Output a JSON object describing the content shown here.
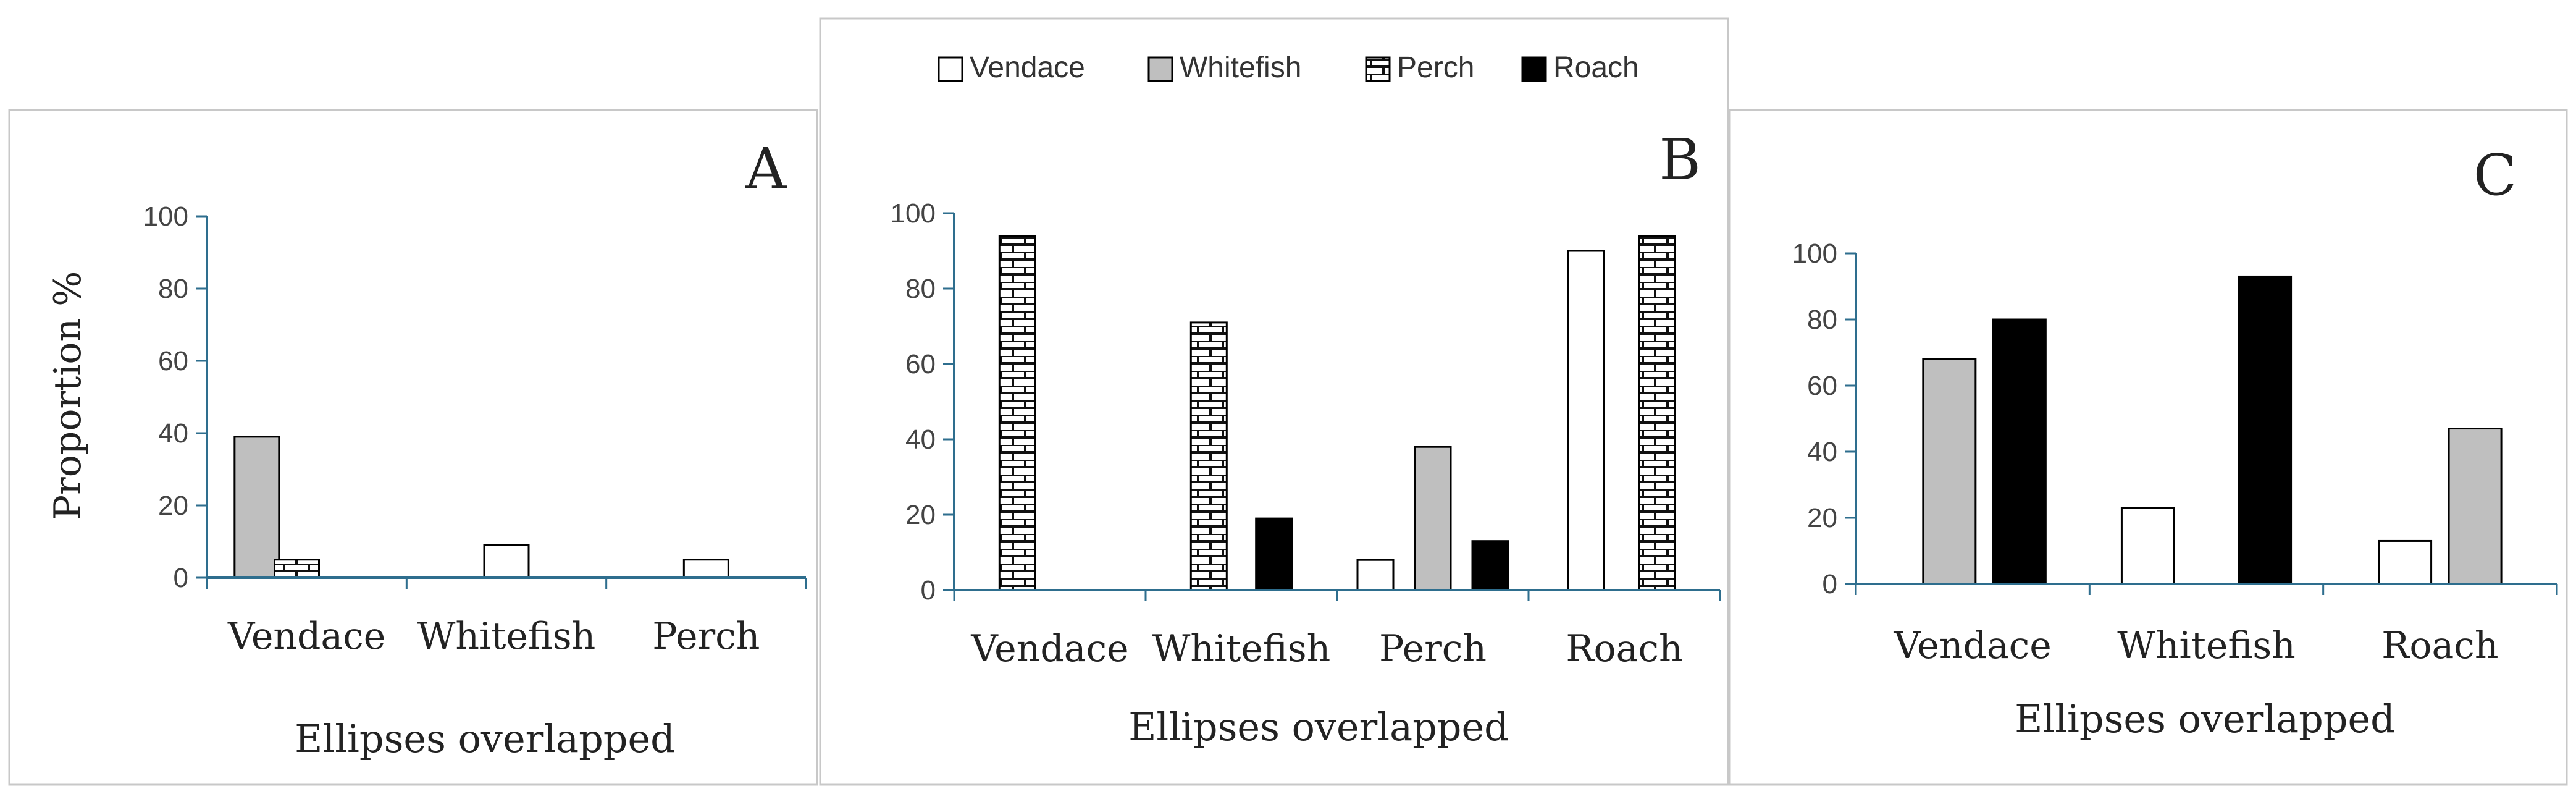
{
  "colors": {
    "vendace": "#ffffff",
    "whitefish": "#bfbfbf",
    "perch_fill": "#ffffff",
    "perch_brick": "#111111",
    "roach": "#000000",
    "axis": "#2e6e8e",
    "frame": "#c8c8c8"
  },
  "legend": {
    "items": [
      {
        "key": "vendace",
        "label": "Vendace"
      },
      {
        "key": "whitefish",
        "label": "Whitefish"
      },
      {
        "key": "perch",
        "label": "Perch"
      },
      {
        "key": "roach",
        "label": "Roach"
      }
    ]
  },
  "chart_data": [
    {
      "type": "bar",
      "panel": "A",
      "title": "A",
      "ylabel": "Proportion %",
      "xlabel": "Ellipses overlapped",
      "ylim": [
        0,
        100
      ],
      "yticks": [
        0,
        20,
        40,
        60,
        80,
        100
      ],
      "categories": [
        "Vendace",
        "Whitefish",
        "Perch"
      ],
      "series": [
        {
          "name": "Vendace",
          "key": "vendace",
          "values": [
            null,
            9,
            5
          ]
        },
        {
          "name": "Whitefish",
          "key": "whitefish",
          "values": [
            39,
            null,
            null
          ]
        },
        {
          "name": "Perch",
          "key": "perch",
          "values": [
            5,
            null,
            null
          ]
        }
      ]
    },
    {
      "type": "bar",
      "panel": "B",
      "title": "B",
      "ylabel": "",
      "xlabel": "Ellipses overlapped",
      "ylim": [
        0,
        100
      ],
      "yticks": [
        0,
        20,
        40,
        60,
        80,
        100
      ],
      "categories": [
        "Vendace",
        "Whitefish",
        "Perch",
        "Roach"
      ],
      "series": [
        {
          "name": "Vendace",
          "key": "vendace",
          "values": [
            null,
            null,
            8,
            90
          ]
        },
        {
          "name": "Whitefish",
          "key": "whitefish",
          "values": [
            null,
            null,
            38,
            null
          ]
        },
        {
          "name": "Perch",
          "key": "perch",
          "values": [
            94,
            71,
            null,
            94
          ]
        },
        {
          "name": "Roach",
          "key": "roach",
          "values": [
            null,
            19,
            13,
            null
          ]
        }
      ]
    },
    {
      "type": "bar",
      "panel": "C",
      "title": "C",
      "ylabel": "",
      "xlabel": "Ellipses overlapped",
      "ylim": [
        0,
        100
      ],
      "yticks": [
        0,
        20,
        40,
        60,
        80,
        100
      ],
      "categories": [
        "Vendace",
        "Whitefish",
        "Roach"
      ],
      "series": [
        {
          "name": "Vendace",
          "key": "vendace",
          "values": [
            null,
            23,
            13
          ]
        },
        {
          "name": "Whitefish",
          "key": "whitefish",
          "values": [
            68,
            null,
            47
          ]
        },
        {
          "name": "Roach",
          "key": "roach",
          "values": [
            80,
            93,
            null
          ]
        }
      ]
    }
  ]
}
